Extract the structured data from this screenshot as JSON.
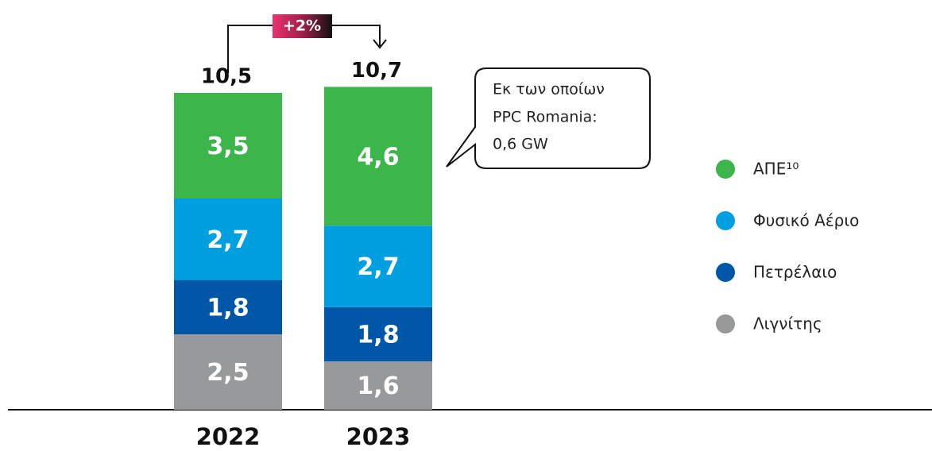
{
  "chart_data": {
    "type": "stacked_bar",
    "categories": [
      "2022",
      "2023"
    ],
    "series": [
      {
        "name": "ΑΠΕ¹⁰",
        "color": "#3cb54a",
        "values": [
          3.5,
          4.6
        ],
        "value_labels": [
          "3,5",
          "4,6"
        ]
      },
      {
        "name": "Φυσικό Αέριο",
        "color": "#00a0e0",
        "values": [
          2.7,
          2.7
        ],
        "value_labels": [
          "2,7",
          "2,7"
        ]
      },
      {
        "name": "Πετρέλαιο",
        "color": "#0057a8",
        "values": [
          1.8,
          1.8
        ],
        "value_labels": [
          "1,8",
          "1,8"
        ]
      },
      {
        "name": "Λιγνίτης",
        "color": "#98999b",
        "values": [
          2.5,
          1.6
        ],
        "value_labels": [
          "2,5",
          "1,6"
        ]
      }
    ],
    "totals": [
      10.5,
      10.7
    ],
    "total_labels": [
      "10,5",
      "10,7"
    ],
    "change_annotation": "+2%",
    "callout": [
      "Εκ των οποίων",
      "PPC Romania:",
      "0,6 GW"
    ],
    "legend": "right"
  }
}
